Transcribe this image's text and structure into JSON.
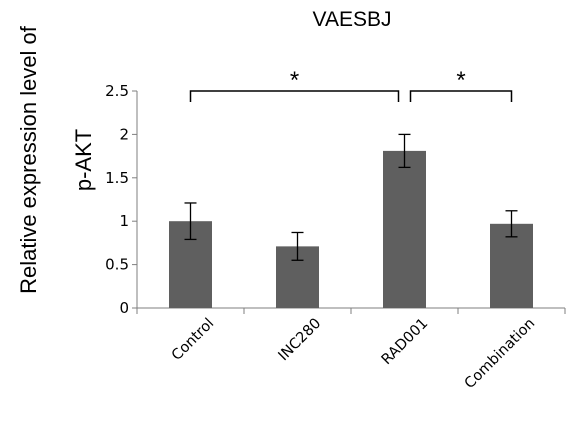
{
  "chart_data": {
    "type": "bar",
    "title": "VAESBJ",
    "ylabel_lines": [
      "Relative expression level of",
      "p-AKT"
    ],
    "xlabel": "",
    "categories": [
      "Control",
      "INC280",
      "RAD001",
      "Combination"
    ],
    "values": [
      1.0,
      0.71,
      1.81,
      0.97
    ],
    "errors": [
      0.21,
      0.16,
      0.19,
      0.15
    ],
    "ylim": [
      0,
      2.5
    ],
    "yticks": [
      "0",
      "0.5",
      "1",
      "1.5",
      "2",
      "2.5"
    ],
    "grid": false,
    "legend": "none",
    "bar_color": "#5f5f5f",
    "significance": [
      {
        "from": 0,
        "to": 2,
        "label": "*"
      },
      {
        "from": 2,
        "to": 3,
        "label": "*"
      }
    ]
  }
}
